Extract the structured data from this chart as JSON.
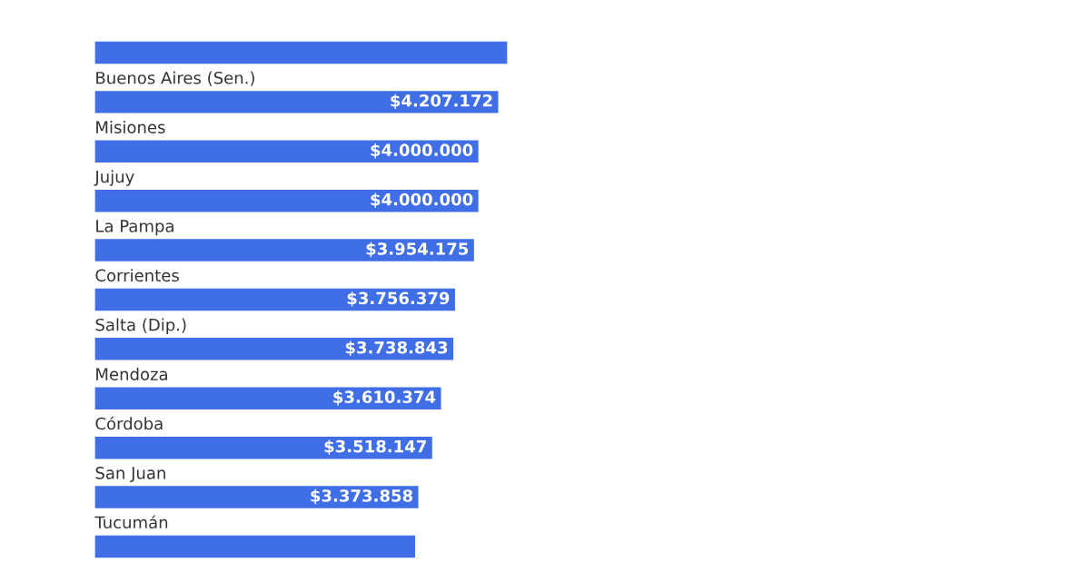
{
  "chart_data": {
    "type": "bar",
    "orientation": "horizontal",
    "categories": [
      null,
      "Buenos Aires (Sen.)",
      "Misiones",
      "Jujuy",
      "La Pampa",
      "Corrientes",
      "Salta (Dip.)",
      "Mendoza",
      "Córdoba",
      "San Juan",
      "Tucumán"
    ],
    "values": [
      4300000,
      4207172,
      4000000,
      4000000,
      3954175,
      3756379,
      3738843,
      3610374,
      3518147,
      3373858,
      3340000
    ],
    "value_labels": [
      null,
      "$4.207.172",
      "$4.000.000",
      "$4.000.000",
      "$3.954.175",
      "$3.756.379",
      "$3.738.843",
      "$3.610.374",
      "$3.518.147",
      "$3.373.858",
      null
    ],
    "color": "#3f6ee6"
  }
}
